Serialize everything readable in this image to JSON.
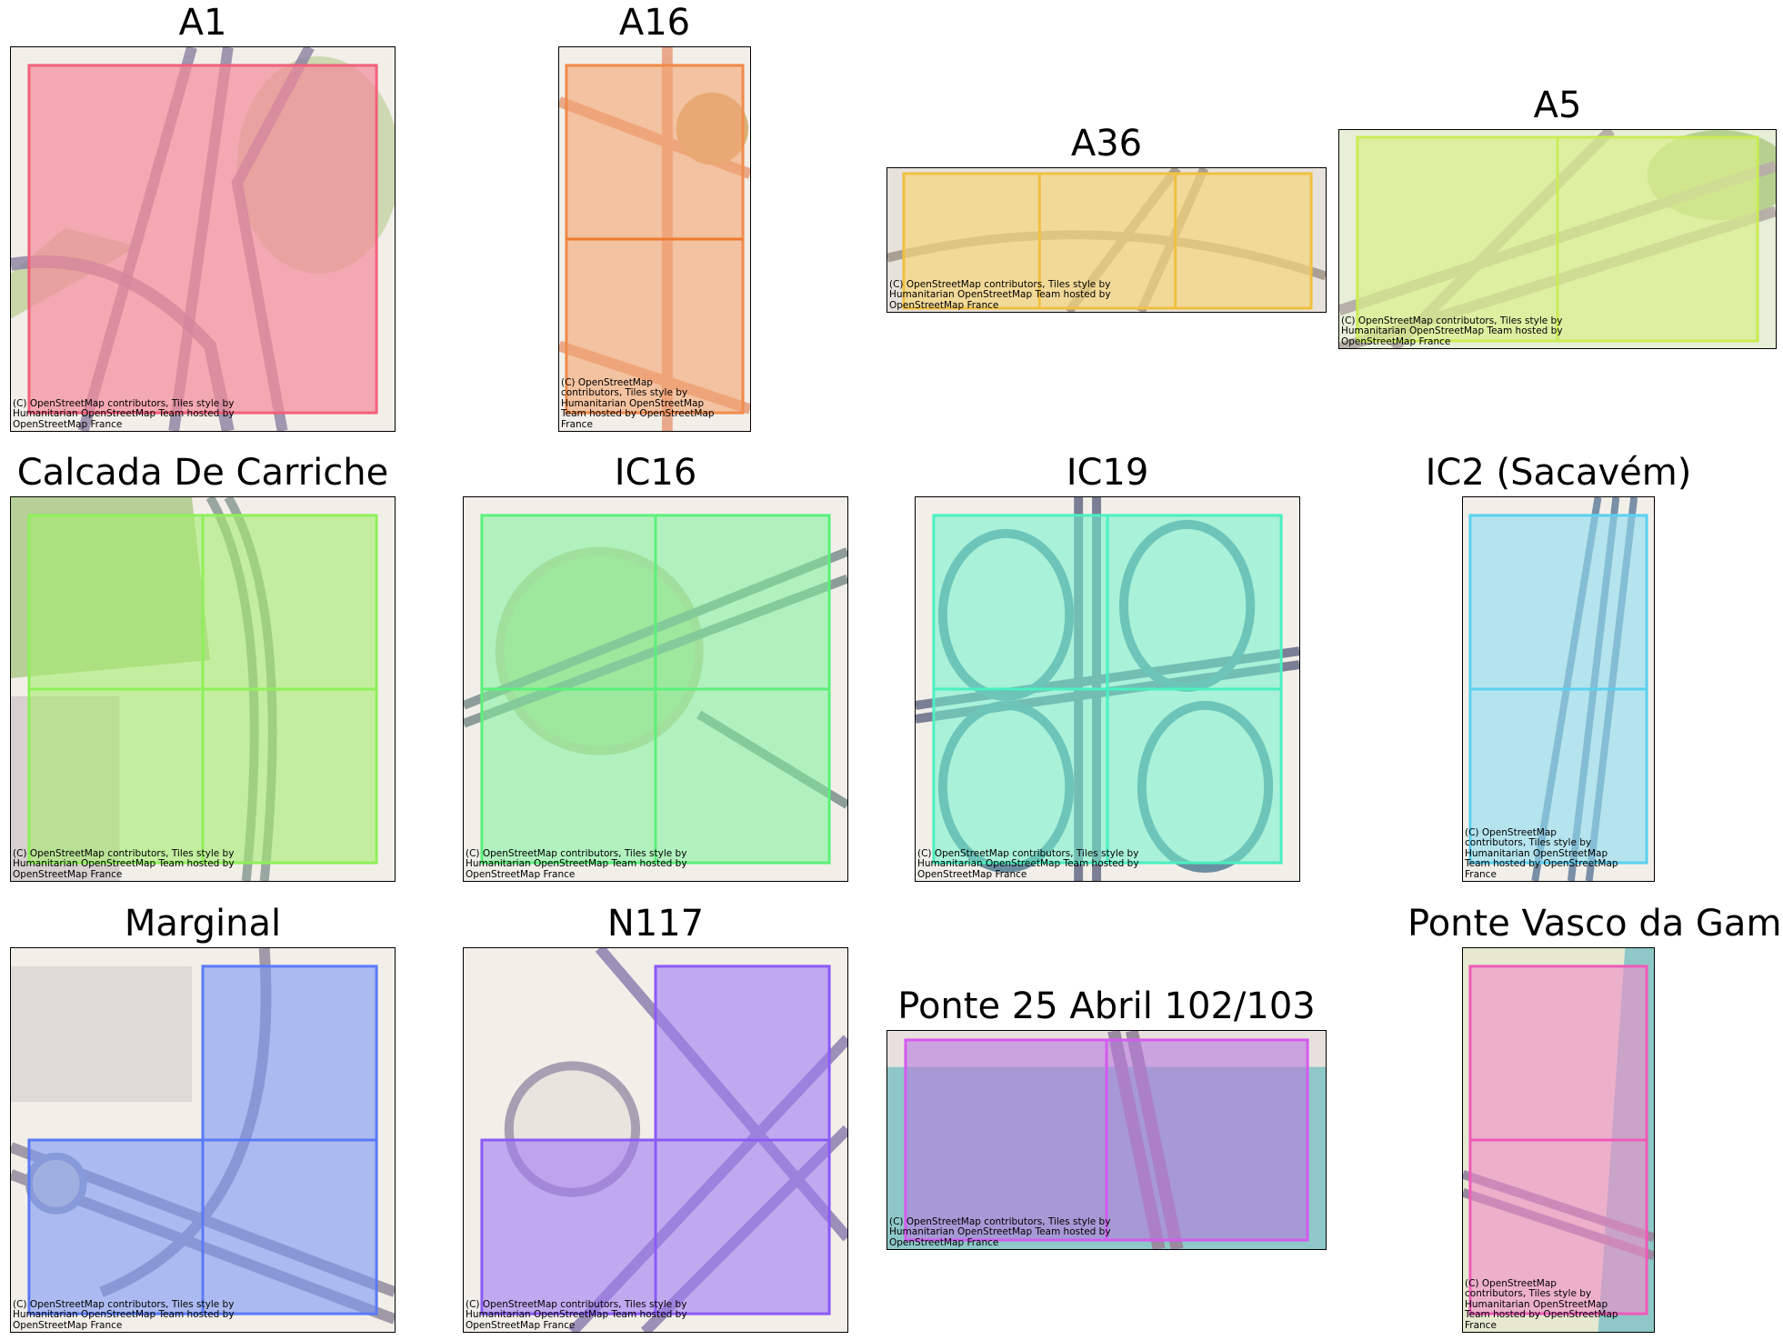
{
  "attribution": "(C) OpenStreetMap contributors, Tiles style by Humanitarian OpenStreetMap Team hosted by OpenStreetMap France",
  "panels": [
    {
      "id": "a1",
      "title": "A1",
      "color": "#f26a7d"
    },
    {
      "id": "a16",
      "title": "A16",
      "color": "#f3945a"
    },
    {
      "id": "a36",
      "title": "A36",
      "color": "#f0c95a"
    },
    {
      "id": "a5",
      "title": "A5",
      "color": "#c8ec55"
    },
    {
      "id": "carriche",
      "title": "Calcada De Carriche",
      "color": "#8ef05a"
    },
    {
      "id": "ic16",
      "title": "IC16",
      "color": "#5af07a"
    },
    {
      "id": "ic19",
      "title": "IC19",
      "color": "#4af0c0"
    },
    {
      "id": "ic2",
      "title": "IC2 (Sacavém)",
      "color": "#5ad0f0"
    },
    {
      "id": "marginal",
      "title": "Marginal",
      "color": "#5a7af5"
    },
    {
      "id": "n117",
      "title": "N117",
      "color": "#8a5af5"
    },
    {
      "id": "ponte25",
      "title": "Ponte 25 Abril 102/103",
      "color": "#d45af0"
    },
    {
      "id": "vascogama",
      "title": "Ponte Vasco da Gama",
      "color": "#f05ab8"
    }
  ]
}
